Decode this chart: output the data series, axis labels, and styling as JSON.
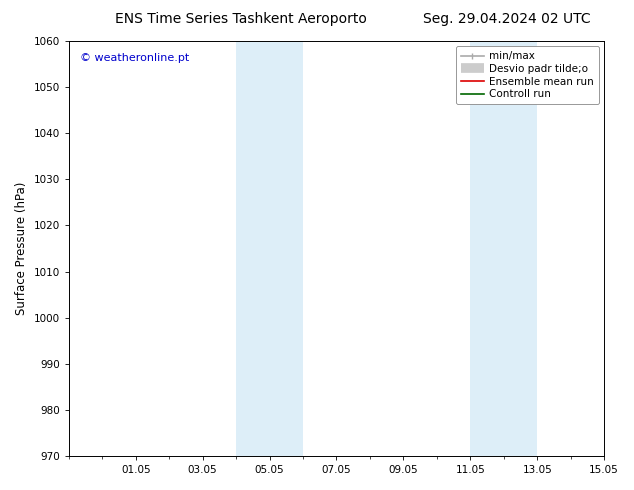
{
  "title_left": "ENS Time Series Tashkent Aeroporto",
  "title_right": "Seg. 29.04.2024 02 UTC",
  "ylabel": "Surface Pressure (hPa)",
  "watermark": "© weatheronline.pt",
  "watermark_color": "#0000cc",
  "ylim": [
    970,
    1060
  ],
  "yticks": [
    970,
    980,
    990,
    1000,
    1010,
    1020,
    1030,
    1040,
    1050,
    1060
  ],
  "xlim": [
    0,
    16
  ],
  "xtick_labels": [
    "01.05",
    "03.05",
    "05.05",
    "07.05",
    "09.05",
    "11.05",
    "13.05",
    "15.05"
  ],
  "xtick_positions": [
    2,
    4,
    6,
    8,
    10,
    12,
    14,
    16
  ],
  "shaded_bands": [
    {
      "x_start": 5,
      "x_end": 6,
      "color": "#ddeef8"
    },
    {
      "x_start": 6,
      "x_end": 7,
      "color": "#ddeef8"
    },
    {
      "x_start": 12,
      "x_end": 13,
      "color": "#ddeef8"
    },
    {
      "x_start": 13,
      "x_end": 14,
      "color": "#ddeef8"
    }
  ],
  "legend_items": [
    {
      "label": "min/max",
      "color": "#aaaaaa",
      "lw": 1.2
    },
    {
      "label": "Desvio padr tilde;o",
      "color": "#cccccc",
      "lw": 7
    },
    {
      "label": "Ensemble mean run",
      "color": "#dd0000",
      "lw": 1.2
    },
    {
      "label": "Controll run",
      "color": "#006600",
      "lw": 1.2
    }
  ],
  "bg_color": "#ffffff",
  "plot_bg_color": "#ffffff",
  "tick_color": "#000000",
  "spine_color": "#000000",
  "title_fontsize": 10,
  "tick_fontsize": 7.5,
  "ylabel_fontsize": 8.5,
  "watermark_fontsize": 8,
  "legend_fontsize": 7.5
}
